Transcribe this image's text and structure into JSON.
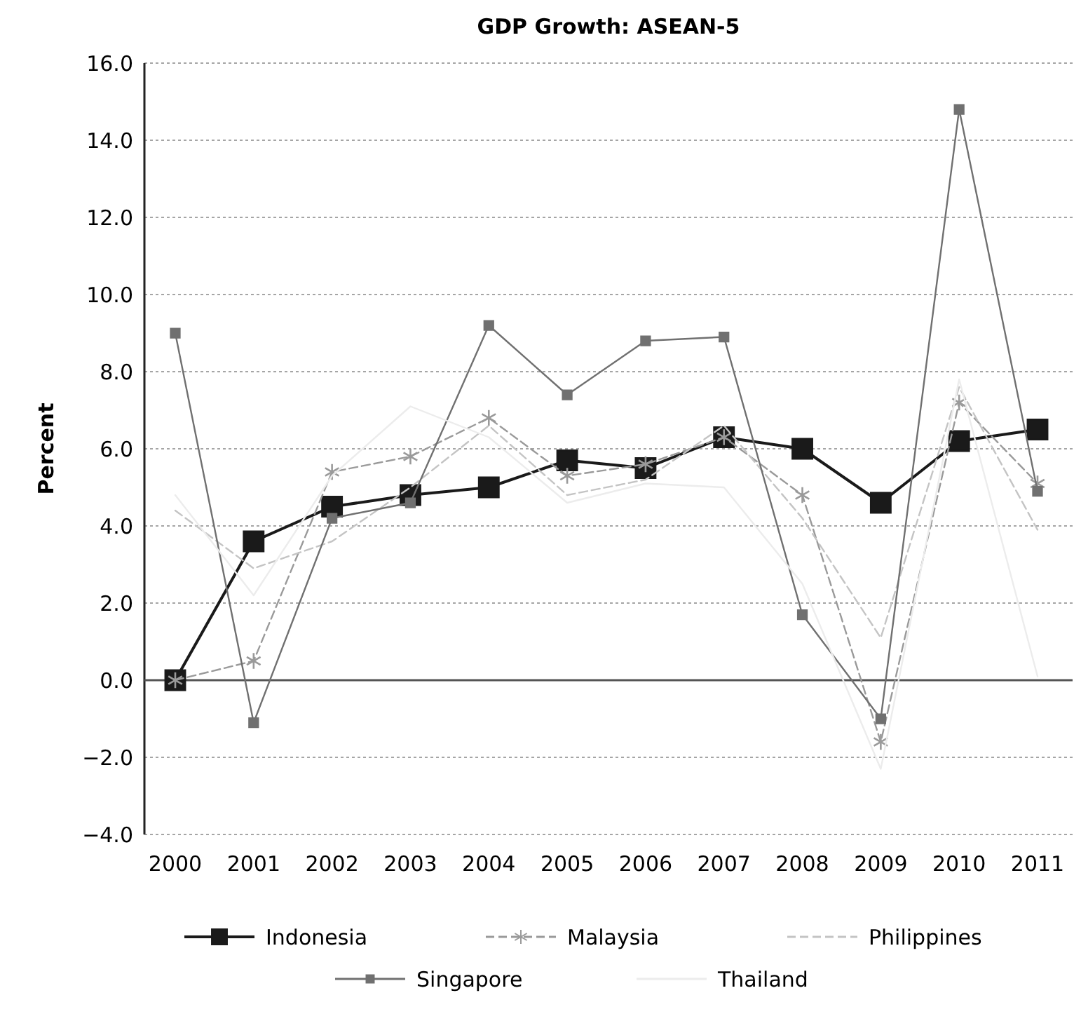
{
  "chart_data": {
    "type": "line",
    "title": "GDP Growth: ASEAN-5",
    "ylabel": "Percent",
    "categories": [
      "2000",
      "2001",
      "2002",
      "2003",
      "2004",
      "2005",
      "2006",
      "2007",
      "2008",
      "2009",
      "2010",
      "2011"
    ],
    "series": [
      {
        "name": "Indonesia",
        "color": "#1a1a1a",
        "marker": "square",
        "line_style": "solid",
        "values": [
          0,
          3.6,
          4.5,
          4.8,
          5.0,
          5.7,
          5.5,
          6.3,
          6.0,
          4.6,
          6.2,
          6.5
        ]
      },
      {
        "name": "Malaysia",
        "color": "#9a9a9a",
        "marker": "cross",
        "line_style": "dashed",
        "values": [
          0,
          0.5,
          5.4,
          5.8,
          6.8,
          5.3,
          5.6,
          6.3,
          4.8,
          -1.6,
          7.2,
          5.1
        ]
      },
      {
        "name": "Philippines",
        "color": "#c4c4c4",
        "marker": "none",
        "line_style": "dashed",
        "values": [
          4.4,
          2.9,
          3.6,
          5.0,
          6.6,
          4.8,
          5.2,
          6.6,
          4.2,
          1.1,
          7.6,
          3.9
        ]
      },
      {
        "name": "Singapore",
        "color": "#707070",
        "marker": "square",
        "line_style": "solid",
        "values": [
          9.0,
          -1.1,
          4.2,
          4.6,
          9.2,
          7.4,
          8.8,
          8.9,
          1.7,
          -1.0,
          14.8,
          4.9
        ]
      },
      {
        "name": "Thailand",
        "color": "#ececec",
        "marker": "none",
        "line_style": "solid",
        "values": [
          4.8,
          2.2,
          5.3,
          7.1,
          6.3,
          4.6,
          5.1,
          5.0,
          2.5,
          -2.3,
          7.8,
          0.1
        ]
      }
    ],
    "ylim": [
      -4,
      16
    ],
    "yticks": [
      {
        "value": -4,
        "label": "−4.0"
      },
      {
        "value": -2,
        "label": "−2.0"
      },
      {
        "value": 0,
        "label": "0.0"
      },
      {
        "value": 2,
        "label": "2.0"
      },
      {
        "value": 4,
        "label": "4.0"
      },
      {
        "value": 6,
        "label": "6.0"
      },
      {
        "value": 8,
        "label": "8.0"
      },
      {
        "value": 10,
        "label": "10.0"
      },
      {
        "value": 12,
        "label": "12.0"
      },
      {
        "value": 14,
        "label": "14.0"
      },
      {
        "value": 16,
        "label": "16.0"
      }
    ],
    "grid": "y",
    "legend": "bottom"
  }
}
